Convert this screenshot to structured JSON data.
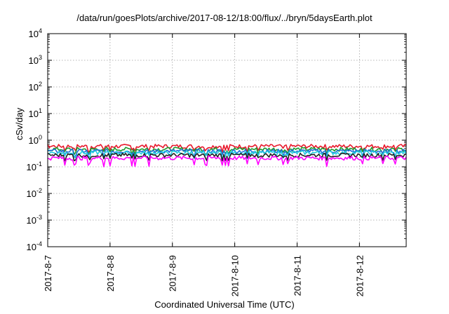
{
  "chart_data": {
    "type": "line",
    "title": "/data/run/goesPlots/archive/2017-08-12/18:00/flux/../bryn/5daysEarth.plot",
    "xlabel": "Coordinated Universal Time (UTC)",
    "ylabel": "cSv/day",
    "yscale": "log",
    "ylim": [
      0.0001,
      10000
    ],
    "y_ticks": [
      {
        "base": "10",
        "exp": "-4",
        "value": 0.0001
      },
      {
        "base": "10",
        "exp": "-3",
        "value": 0.001
      },
      {
        "base": "10",
        "exp": "-2",
        "value": 0.01
      },
      {
        "base": "10",
        "exp": "-1",
        "value": 0.1
      },
      {
        "base": "10",
        "exp": "0",
        "value": 1
      },
      {
        "base": "10",
        "exp": "1",
        "value": 10
      },
      {
        "base": "10",
        "exp": "2",
        "value": 100
      },
      {
        "base": "10",
        "exp": "3",
        "value": 1000
      },
      {
        "base": "10",
        "exp": "4",
        "value": 10000
      }
    ],
    "xlim": [
      "2017-8-7",
      "2017-8-12 18:00"
    ],
    "x_ticks": [
      "2017-8-7",
      "2017-8-8",
      "2017-8-9",
      "2017-8-10",
      "2017-8-11",
      "2017-8-12"
    ],
    "grid": true,
    "series": [
      {
        "color": "#e8192c",
        "values": [
          0.58,
          0.55
        ]
      },
      {
        "color": "#1a9a2e",
        "values": [
          0.45,
          0.42
        ]
      },
      {
        "color": "#1e6fd9",
        "values": [
          0.38,
          0.36
        ]
      },
      {
        "color": "#22cde0",
        "values": [
          0.33,
          0.31
        ]
      },
      {
        "color": "#222222",
        "values": [
          0.27,
          0.26
        ]
      },
      {
        "color": "#ff00ff",
        "values": [
          0.21,
          0.2
        ]
      }
    ]
  }
}
